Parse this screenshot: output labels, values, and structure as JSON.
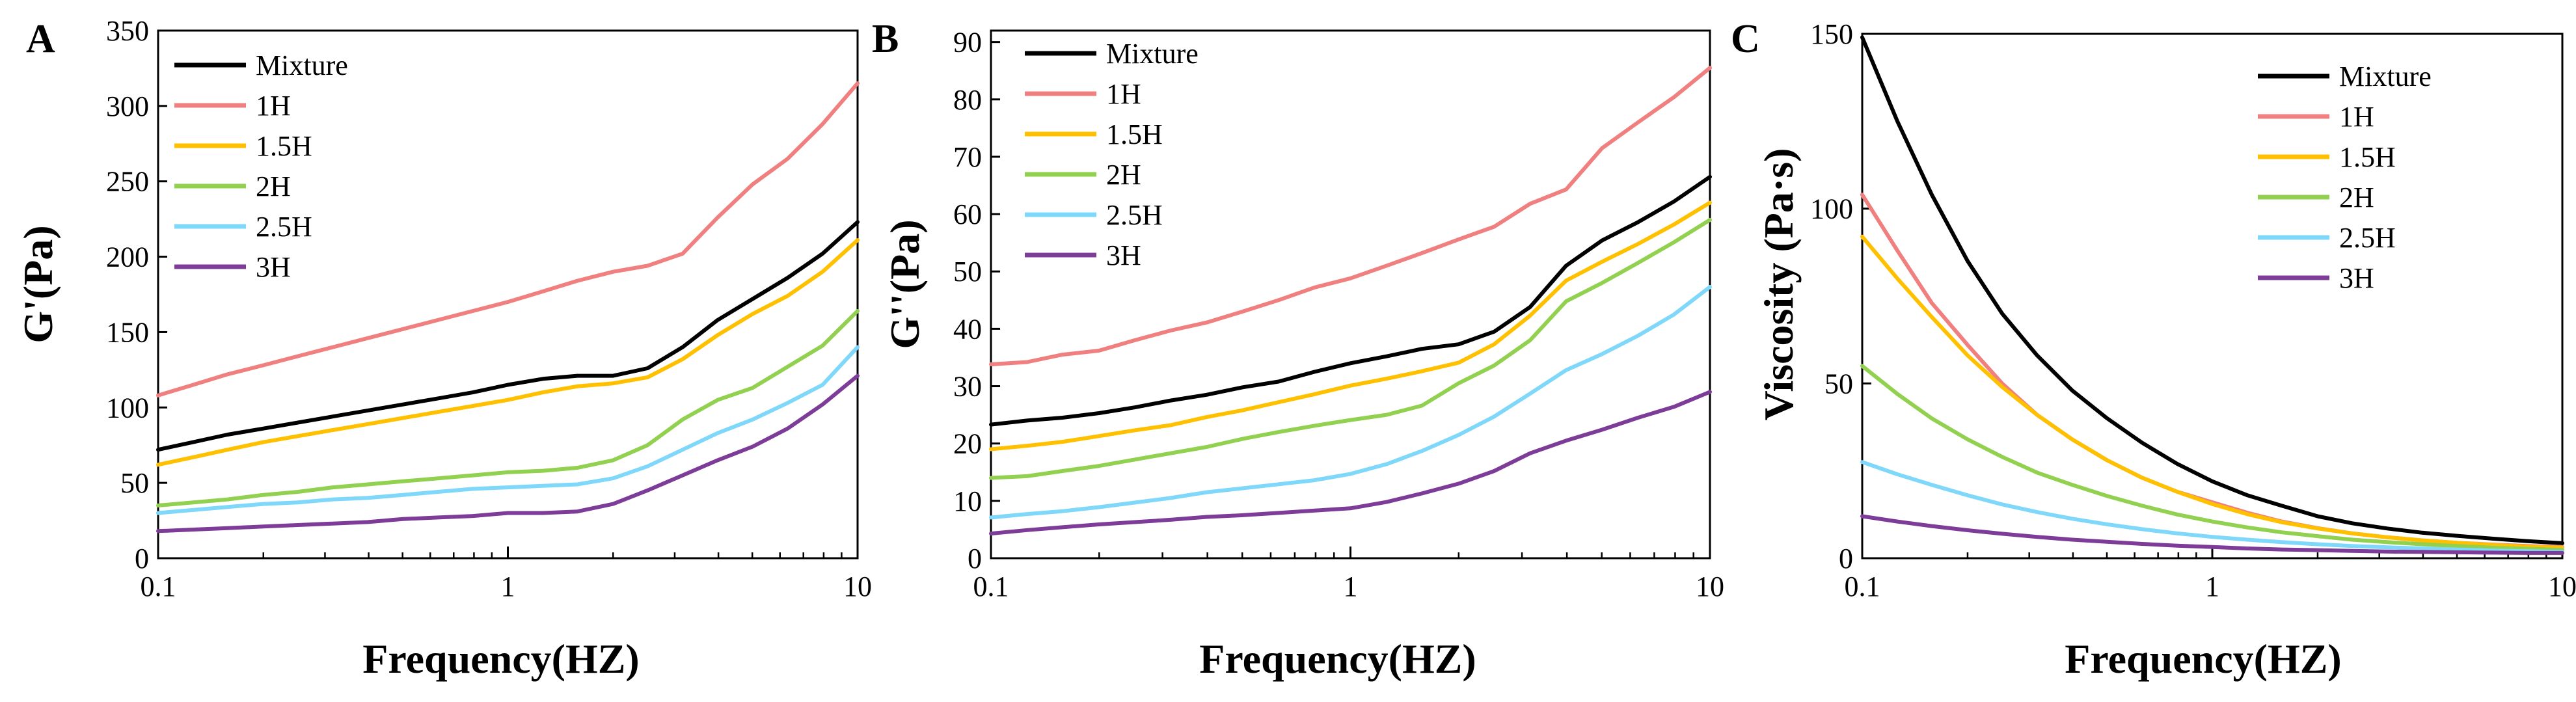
{
  "chart_data": [
    {
      "type": "line",
      "panel_label": "A",
      "title": "",
      "xlabel": "Frequency(HZ)",
      "ylabel": "G'(Pa)",
      "xscale": "log",
      "xlim": [
        0.1,
        10
      ],
      "ylim": [
        0,
        350
      ],
      "x_ticks": [
        0.1,
        1,
        10
      ],
      "x_tick_labels": [
        "0.1",
        "1",
        "10"
      ],
      "y_ticks": [
        0,
        50,
        100,
        150,
        200,
        250,
        300,
        350
      ],
      "y_tick_labels": [
        "0",
        "50",
        "100",
        "150",
        "200",
        "250",
        "300",
        "350"
      ],
      "legend_position": "top-left",
      "x": [
        0.1,
        0.126,
        0.158,
        0.2,
        0.251,
        0.316,
        0.398,
        0.501,
        0.631,
        0.794,
        1.0,
        1.26,
        1.58,
        2.0,
        2.51,
        3.16,
        3.98,
        5.01,
        6.31,
        7.94,
        10.0
      ],
      "series": [
        {
          "name": "Mixture",
          "color": "#000000",
          "values": [
            72,
            77,
            82,
            86,
            90,
            94,
            98,
            102,
            106,
            110,
            115,
            119,
            121,
            121,
            126,
            140,
            158,
            172,
            186,
            202,
            223
          ]
        },
        {
          "name": "1H",
          "color": "#F08080",
          "values": [
            108,
            115,
            122,
            128,
            134,
            140,
            146,
            152,
            158,
            164,
            170,
            177,
            184,
            190,
            194,
            202,
            226,
            248,
            265,
            288,
            315
          ]
        },
        {
          "name": "1.5H",
          "color": "#FFC000",
          "values": [
            62,
            67,
            72,
            77,
            81,
            85,
            89,
            93,
            97,
            101,
            105,
            110,
            114,
            116,
            120,
            132,
            148,
            162,
            174,
            190,
            211
          ]
        },
        {
          "name": "2H",
          "color": "#92D050",
          "values": [
            35,
            37,
            39,
            42,
            44,
            47,
            49,
            51,
            53,
            55,
            57,
            58,
            60,
            65,
            75,
            92,
            105,
            113,
            127,
            141,
            164
          ]
        },
        {
          "name": "2.5H",
          "color": "#7FD8FA",
          "values": [
            30,
            32,
            34,
            36,
            37,
            39,
            40,
            42,
            44,
            46,
            47,
            48,
            49,
            53,
            61,
            72,
            83,
            92,
            103,
            115,
            140
          ]
        },
        {
          "name": "3H",
          "color": "#7D3C98",
          "values": [
            18,
            19,
            20,
            21,
            22,
            23,
            24,
            26,
            27,
            28,
            30,
            30,
            31,
            36,
            45,
            55,
            65,
            74,
            86,
            102,
            121
          ]
        }
      ]
    },
    {
      "type": "line",
      "panel_label": "B",
      "title": "",
      "xlabel": "Frequency(HZ)",
      "ylabel": "G''(Pa)",
      "xscale": "log",
      "xlim": [
        0.1,
        10
      ],
      "ylim": [
        0,
        92
      ],
      "x_ticks": [
        0.1,
        1,
        10
      ],
      "x_tick_labels": [
        "0.1",
        "1",
        "10"
      ],
      "y_ticks": [
        0,
        10,
        20,
        30,
        40,
        50,
        60,
        70,
        80,
        90
      ],
      "y_tick_labels": [
        "0",
        "10",
        "20",
        "30",
        "40",
        "50",
        "60",
        "70",
        "80",
        "90"
      ],
      "legend_position": "top-left",
      "x": [
        0.1,
        0.126,
        0.158,
        0.2,
        0.251,
        0.316,
        0.398,
        0.501,
        0.631,
        0.794,
        1.0,
        1.26,
        1.58,
        2.0,
        2.51,
        3.16,
        3.98,
        5.01,
        6.31,
        7.94,
        10.0
      ],
      "series": [
        {
          "name": "Mixture",
          "color": "#000000",
          "values": [
            23.3,
            24,
            24.5,
            25.3,
            26.3,
            27.5,
            28.5,
            29.8,
            30.8,
            32.5,
            34,
            35.2,
            36.5,
            37.3,
            39.5,
            43.8,
            51,
            55.4,
            58.6,
            62.2,
            66.5
          ]
        },
        {
          "name": "1H",
          "color": "#F08080",
          "values": [
            33.8,
            34.2,
            35.5,
            36.2,
            38,
            39.7,
            41.1,
            43,
            45,
            47.2,
            48.8,
            51,
            53.2,
            55.6,
            57.8,
            61.8,
            64.3,
            71.5,
            76,
            80.4,
            85.5
          ]
        },
        {
          "name": "1.5H",
          "color": "#FFC000",
          "values": [
            19,
            19.6,
            20.3,
            21.3,
            22.3,
            23.2,
            24.6,
            25.8,
            27.2,
            28.6,
            30.1,
            31.3,
            32.6,
            34.1,
            37.3,
            42.3,
            48.4,
            51.7,
            54.8,
            58.2,
            62
          ]
        },
        {
          "name": "2H",
          "color": "#92D050",
          "values": [
            14,
            14.3,
            15.2,
            16.1,
            17.2,
            18.3,
            19.4,
            20.8,
            22,
            23.1,
            24.1,
            25,
            26.6,
            30.5,
            33.6,
            38,
            44.8,
            48,
            51.5,
            55.1,
            59
          ]
        },
        {
          "name": "2.5H",
          "color": "#7FD8FA",
          "values": [
            7.1,
            7.7,
            8.2,
            8.9,
            9.7,
            10.5,
            11.5,
            12.2,
            12.9,
            13.6,
            14.7,
            16.4,
            18.7,
            21.5,
            24.7,
            28.7,
            32.8,
            35.6,
            38.8,
            42.5,
            47.3
          ]
        },
        {
          "name": "3H",
          "color": "#7D3C98",
          "values": [
            4.3,
            4.9,
            5.4,
            5.9,
            6.3,
            6.7,
            7.2,
            7.5,
            7.9,
            8.3,
            8.7,
            9.8,
            11.3,
            13,
            15.2,
            18.3,
            20.5,
            22.4,
            24.5,
            26.4,
            29
          ]
        }
      ]
    },
    {
      "type": "line",
      "panel_label": "C",
      "title": "",
      "xlabel": "Frequency(HZ)",
      "ylabel": "Viscosity (Pa·s)",
      "xscale": "log",
      "xlim": [
        0.1,
        10
      ],
      "ylim": [
        0,
        150
      ],
      "x_ticks": [
        0.1,
        1,
        10
      ],
      "x_tick_labels": [
        "0.1",
        "1",
        "10"
      ],
      "y_ticks": [
        0,
        50,
        100,
        150
      ],
      "y_tick_labels": [
        "0",
        "50",
        "100",
        "150"
      ],
      "legend_position": "top-right",
      "x": [
        0.1,
        0.126,
        0.158,
        0.2,
        0.251,
        0.316,
        0.398,
        0.501,
        0.631,
        0.794,
        1.0,
        1.26,
        1.58,
        2.0,
        2.51,
        3.16,
        3.98,
        5.01,
        6.31,
        7.94,
        10.0
      ],
      "series": [
        {
          "name": "Mixture",
          "color": "#000000",
          "values": [
            149,
            125,
            104,
            85,
            70,
            58,
            48,
            40,
            33,
            27,
            22,
            18,
            15,
            12,
            10,
            8.5,
            7.3,
            6.4,
            5.6,
            4.9,
            4.3
          ]
        },
        {
          "name": "1H",
          "color": "#F08080",
          "values": [
            104,
            88,
            73,
            61,
            50,
            41,
            34,
            28,
            23,
            19,
            16,
            13,
            10.5,
            8.6,
            7.1,
            6.0,
            5.1,
            4.4,
            3.9,
            3.5,
            3.2
          ]
        },
        {
          "name": "1.5H",
          "color": "#FFC000",
          "values": [
            92,
            80,
            69,
            58,
            49,
            41,
            34,
            28,
            23,
            19,
            15.5,
            12.6,
            10.3,
            8.5,
            7.1,
            6.0,
            5.1,
            4.4,
            3.8,
            3.3,
            3.0
          ]
        },
        {
          "name": "2H",
          "color": "#92D050",
          "values": [
            55,
            47,
            40,
            34,
            29,
            24.5,
            21,
            17.8,
            15,
            12.5,
            10.5,
            8.8,
            7.4,
            6.3,
            5.3,
            4.6,
            4.0,
            3.5,
            3.0,
            2.7,
            2.4
          ]
        },
        {
          "name": "2.5H",
          "color": "#7FD8FA",
          "values": [
            27.5,
            24,
            21,
            18,
            15.4,
            13.2,
            11.3,
            9.7,
            8.3,
            7.1,
            6.1,
            5.3,
            4.6,
            4.0,
            3.5,
            3.1,
            2.8,
            2.5,
            2.2,
            2.0,
            1.8
          ]
        },
        {
          "name": "3H",
          "color": "#7D3C98",
          "values": [
            12,
            10.5,
            9.2,
            8,
            7,
            6.1,
            5.3,
            4.7,
            4.1,
            3.6,
            3.2,
            2.8,
            2.5,
            2.3,
            2.1,
            1.9,
            1.8,
            1.7,
            1.6,
            1.5,
            1.5
          ]
        }
      ]
    }
  ]
}
